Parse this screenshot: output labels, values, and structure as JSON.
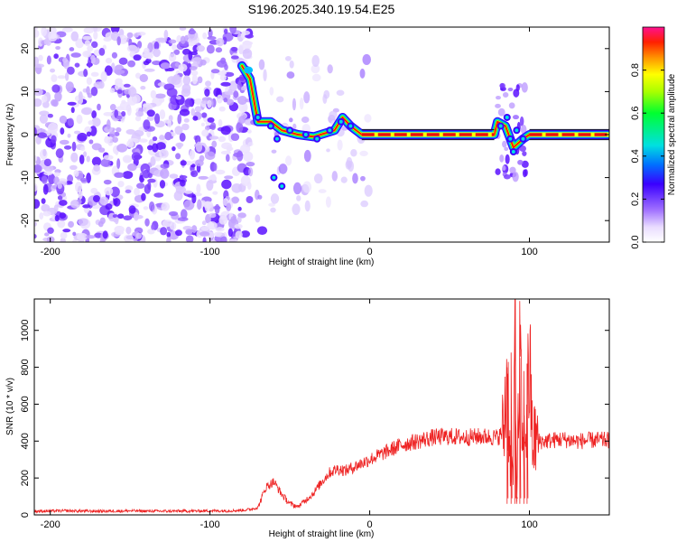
{
  "title": "S196.2025.340.19.54.E25",
  "chart_data": [
    {
      "type": "heatmap",
      "name": "spectrogram",
      "xlabel": "Height of straight line (km)",
      "ylabel": "Frequency (Hz)",
      "xlim": [
        -210,
        150
      ],
      "ylim": [
        -25,
        25
      ],
      "x_ticks": [
        -200,
        -100,
        0,
        100
      ],
      "y_ticks": [
        -20,
        -10,
        0,
        10,
        20
      ],
      "colorbar": {
        "label": "Normalized spectral amplitude",
        "range": [
          0.0,
          1.0
        ],
        "ticks": [
          0.0,
          0.2,
          0.4,
          0.6,
          0.8
        ]
      },
      "features": [
        {
          "x_range": [
            -210,
            -75
          ],
          "description_value": "broadband noise 0.1-0.3"
        },
        {
          "x_range": [
            -5,
            78
          ],
          "freq_hz": 0,
          "amplitude": 1.0
        },
        {
          "x_range": [
            100,
            150
          ],
          "freq_hz": 0,
          "amplitude": 1.0
        }
      ],
      "track": [
        {
          "x": -80,
          "f": 16
        },
        {
          "x": -75,
          "f": 13
        },
        {
          "x": -70,
          "f": 3
        },
        {
          "x": -62,
          "f": 3
        },
        {
          "x": -55,
          "f": 1
        },
        {
          "x": -45,
          "f": 0
        },
        {
          "x": -35,
          "f": -0.5
        },
        {
          "x": -22,
          "f": 1
        },
        {
          "x": -17,
          "f": 4
        },
        {
          "x": -12,
          "f": 2
        },
        {
          "x": -5,
          "f": 0
        },
        {
          "x": 78,
          "f": 0
        },
        {
          "x": 80,
          "f": 3
        },
        {
          "x": 85,
          "f": 2
        },
        {
          "x": 90,
          "f": -3
        },
        {
          "x": 96,
          "f": -1
        },
        {
          "x": 100,
          "f": 0
        },
        {
          "x": 150,
          "f": 0
        }
      ]
    },
    {
      "type": "line",
      "name": "snr",
      "xlabel": "Height of straight line (km)",
      "ylabel": "SNR (10 * v/v)",
      "xlim": [
        -210,
        150
      ],
      "ylim": [
        0,
        1170
      ],
      "x_ticks": [
        -200,
        -100,
        0,
        100
      ],
      "y_ticks": [
        0,
        200,
        400,
        600,
        800,
        1000
      ],
      "color": "#ee2222",
      "series": [
        {
          "x": [
            -210,
            -190,
            -170,
            -150,
            -130,
            -110,
            -100,
            -90,
            -80,
            -75,
            -70,
            -65,
            -60,
            -55,
            -50,
            -45,
            -40,
            -35,
            -30,
            -25,
            -20,
            -15,
            -10,
            -5,
            0,
            5,
            10,
            15,
            20,
            25,
            30,
            40,
            50,
            60,
            70,
            80,
            84,
            86,
            88,
            90,
            91,
            92,
            94,
            96,
            98,
            100,
            102,
            104,
            106,
            110,
            120,
            130,
            140,
            150
          ],
          "y": [
            20,
            22,
            20,
            22,
            20,
            21,
            22,
            22,
            25,
            30,
            40,
            150,
            180,
            110,
            60,
            45,
            80,
            120,
            180,
            230,
            250,
            240,
            260,
            280,
            300,
            320,
            340,
            360,
            380,
            390,
            400,
            420,
            425,
            420,
            425,
            420,
            450,
            800,
            300,
            200,
            1170,
            100,
            850,
            300,
            500,
            820,
            380,
            420,
            400,
            400,
            410,
            400,
            405,
            405
          ]
        }
      ]
    }
  ]
}
